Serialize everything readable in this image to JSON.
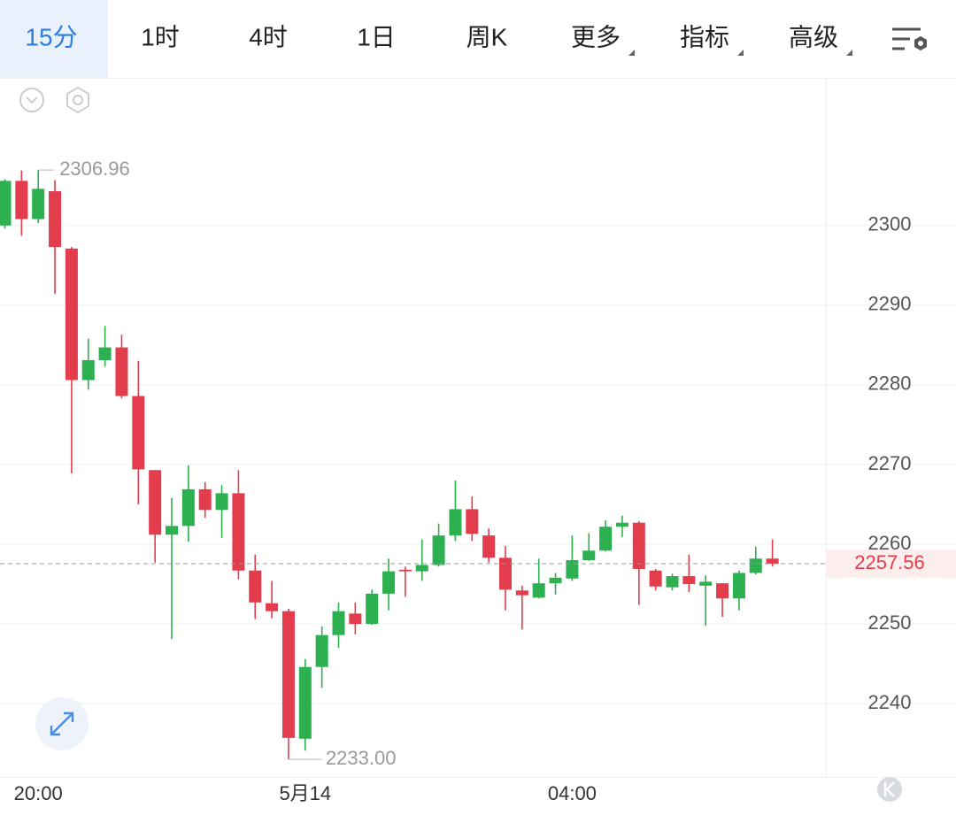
{
  "tabs": [
    {
      "label": "15分",
      "dropdown": false
    },
    {
      "label": "1时",
      "dropdown": false
    },
    {
      "label": "4时",
      "dropdown": false
    },
    {
      "label": "1日",
      "dropdown": false
    },
    {
      "label": "周K",
      "dropdown": false
    },
    {
      "label": "更多",
      "dropdown": true
    },
    {
      "label": "指标",
      "dropdown": true
    },
    {
      "label": "高级",
      "dropdown": true
    }
  ],
  "active_tab": 0,
  "chart_data": {
    "type": "candlestick",
    "categories": [
      null,
      null,
      "20:00",
      null,
      null,
      null,
      null,
      null,
      null,
      null,
      null,
      null,
      null,
      null,
      null,
      null,
      null,
      null,
      "5月14",
      null,
      null,
      null,
      null,
      null,
      null,
      null,
      null,
      null,
      null,
      null,
      null,
      null,
      null,
      null,
      "04:00",
      null,
      null,
      null,
      null,
      null,
      null,
      null,
      null,
      null,
      null,
      null,
      null
    ],
    "open": [
      2300.0,
      2305.6,
      2300.8,
      2304.3,
      2297.1,
      2280.6,
      2283.1,
      2284.7,
      2278.6,
      2269.3,
      2261.2,
      2262.3,
      2266.9,
      2264.3,
      2266.4,
      2256.7,
      2252.6,
      2251.6,
      2235.6,
      2244.6,
      2248.6,
      2251.3,
      2250.0,
      2253.8,
      2256.8,
      2256.6,
      2257.4,
      2261.1,
      2264.4,
      2261.1,
      2258.3,
      2254.2,
      2253.3,
      2255.1,
      2255.7,
      2258.0,
      2259.2,
      2262.2,
      2262.7,
      2256.7,
      2254.6,
      2256.0,
      2254.8,
      2255.1,
      2253.2,
      2256.4,
      2258.2
    ],
    "high": [
      2305.8,
      2306.9,
      2306.96,
      2305.7,
      2297.3,
      2285.8,
      2287.4,
      2286.3,
      2283.0,
      2269.3,
      2265.8,
      2269.9,
      2267.8,
      2267.4,
      2269.3,
      2258.7,
      2255.4,
      2251.9,
      2245.6,
      2249.7,
      2252.7,
      2252.7,
      2254.3,
      2258.2,
      2257.2,
      2260.6,
      2262.6,
      2268.0,
      2266.0,
      2262.0,
      2259.8,
      2254.8,
      2258.2,
      2256.4,
      2261.1,
      2261.4,
      2263.0,
      2263.6,
      2262.9,
      2256.9,
      2256.3,
      2258.7,
      2256.1,
      2255.1,
      2256.7,
      2259.7,
      2260.6
    ],
    "low": [
      2299.6,
      2298.7,
      2300.3,
      2291.4,
      2268.9,
      2279.4,
      2282.3,
      2278.3,
      2265.0,
      2257.7,
      2248.1,
      2260.3,
      2263.3,
      2260.8,
      2255.6,
      2250.6,
      2250.7,
      2233.0,
      2234.1,
      2242.0,
      2247.0,
      2248.7,
      2249.9,
      2251.7,
      2253.4,
      2255.4,
      2257.2,
      2260.4,
      2260.4,
      2257.7,
      2251.7,
      2249.3,
      2253.2,
      2253.7,
      2255.4,
      2257.9,
      2259.1,
      2260.9,
      2252.4,
      2254.2,
      2254.2,
      2254.0,
      2249.8,
      2250.9,
      2251.7,
      2256.2,
      2257.2
    ],
    "close": [
      2305.6,
      2300.8,
      2304.6,
      2297.3,
      2280.6,
      2283.1,
      2284.7,
      2278.6,
      2269.4,
      2261.2,
      2262.3,
      2266.9,
      2264.3,
      2266.4,
      2256.7,
      2252.7,
      2251.6,
      2235.7,
      2244.6,
      2248.6,
      2251.6,
      2250.0,
      2253.8,
      2256.6,
      2256.6,
      2257.4,
      2261.1,
      2264.4,
      2261.3,
      2258.3,
      2254.3,
      2253.6,
      2255.1,
      2255.8,
      2258.0,
      2259.2,
      2262.2,
      2262.7,
      2256.9,
      2254.7,
      2256.0,
      2255.0,
      2255.3,
      2253.2,
      2256.4,
      2258.2,
      2257.56
    ],
    "up_color": "#2db04f",
    "down_color": "#e33c4c",
    "ylim": [
      2230.8,
      2318.3
    ],
    "yticks": [
      2240,
      2250,
      2260,
      2270,
      2280,
      2290,
      2300
    ],
    "grid": true,
    "high_marker": {
      "value": 2306.96,
      "label": "2306.96"
    },
    "low_marker": {
      "value": 2233.0,
      "label": "2233.00"
    },
    "last_price": {
      "value": 2257.56,
      "label": "2257.56"
    }
  }
}
